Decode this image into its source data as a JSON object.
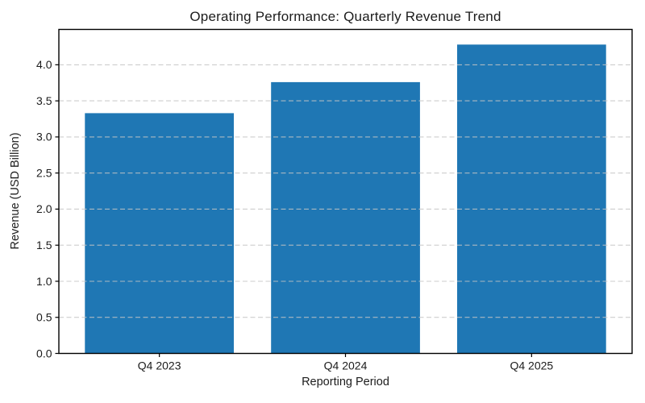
{
  "chart_data": {
    "type": "bar",
    "title": "Operating Performance: Quarterly Revenue Trend",
    "xlabel": "Reporting Period",
    "ylabel": "Revenue (USD Billion)",
    "categories": [
      "Q4 2023",
      "Q4 2024",
      "Q4 2025"
    ],
    "values": [
      3.33,
      3.76,
      4.28
    ],
    "ylim": [
      0,
      4.49
    ],
    "yticks": [
      0,
      0.5,
      1,
      1.5,
      2,
      2.5,
      3,
      3.5,
      4
    ],
    "ytick_labels": [
      "0.0",
      "0.5",
      "1.0",
      "1.5",
      "2.0",
      "2.5",
      "3.0",
      "3.5",
      "4.0"
    ],
    "grid": "y-only-dashed",
    "grid_above_bars": true,
    "legend": "none",
    "bar_color": "#1f77b4",
    "grid_color": "#c4c4c4",
    "spine_color": "#000000",
    "text_color": "#1c1c1c",
    "background_color": "#ffffff",
    "bar_width_frac": 0.8
  }
}
